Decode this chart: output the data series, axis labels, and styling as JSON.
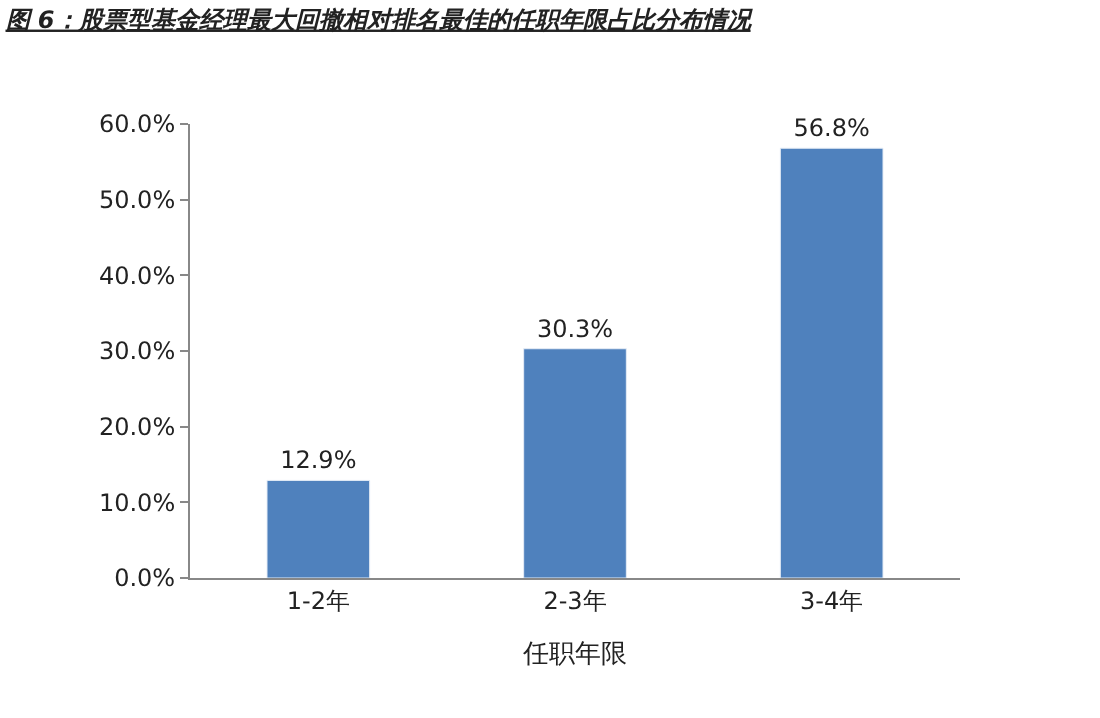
{
  "chart_data": {
    "type": "bar",
    "title": "图 6：股票型基金经理最大回撤相对排名最佳的任职年限占比分布情况",
    "xlabel": "任职年限",
    "categories": [
      "1-2年",
      "2-3年",
      "3-4年"
    ],
    "values": [
      12.9,
      30.3,
      56.8
    ],
    "value_labels": [
      "12.9%",
      "30.3%",
      "56.8%"
    ],
    "color": "#4f81bd",
    "ylim": [
      0,
      60
    ],
    "yticks": [
      {
        "value": 0,
        "label": "0.0%"
      },
      {
        "value": 10,
        "label": "10.0%"
      },
      {
        "value": 20,
        "label": "20.0%"
      },
      {
        "value": 30,
        "label": "30.0%"
      },
      {
        "value": 40,
        "label": "40.0%"
      },
      {
        "value": 50,
        "label": "50.0%"
      },
      {
        "value": 60,
        "label": "60.0%"
      }
    ],
    "legend": false
  }
}
